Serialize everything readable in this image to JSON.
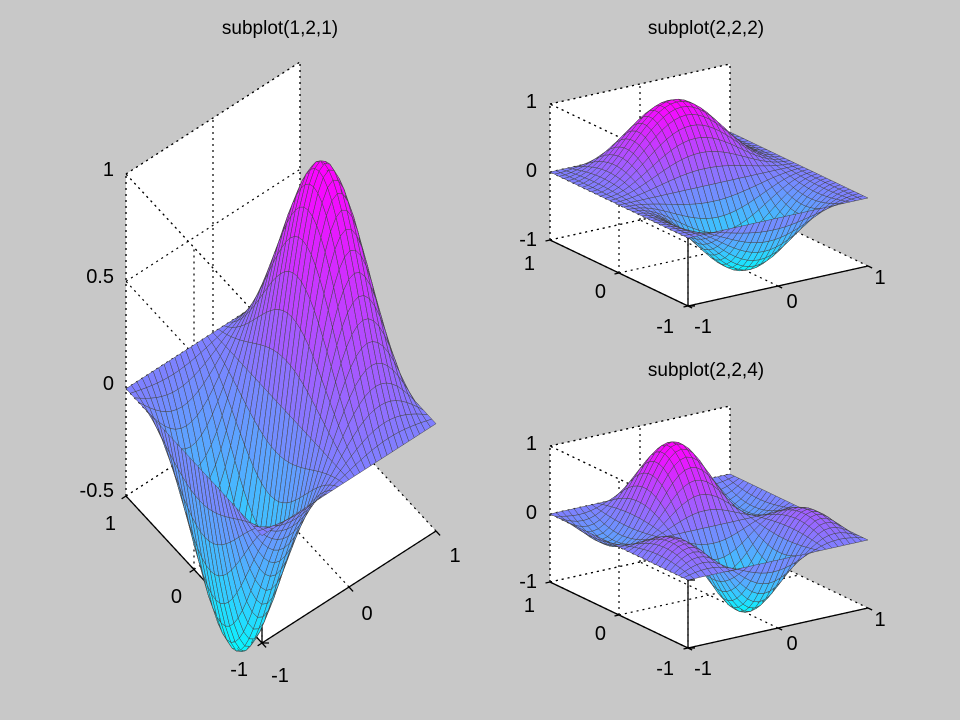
{
  "figure": {
    "background": "#c8c8c8",
    "axes_background": "#ffffff"
  },
  "chart_data": [
    {
      "type": "surface",
      "title": "subplot(1,2,1)",
      "xlabel": "",
      "ylabel": "",
      "zlabel": "",
      "xlim": [
        -1,
        1
      ],
      "ylim": [
        -1,
        1
      ],
      "zlim": [
        -0.5,
        1
      ],
      "x_ticks": [
        "-1",
        "0",
        "1"
      ],
      "y_ticks": [
        "-1",
        "0",
        "1"
      ],
      "z_ticks": [
        "-0.5",
        "0",
        "0.5",
        "1"
      ],
      "grid": true,
      "colormap": [
        "#00ffff",
        "#ff00ff"
      ],
      "surface": "z = sin(pi*x) * exp(-y^2) * cos(pi*y/2)"
    },
    {
      "type": "surface",
      "title": "subplot(2,2,2)",
      "xlabel": "",
      "ylabel": "",
      "zlabel": "",
      "xlim": [
        -1,
        1
      ],
      "ylim": [
        -1,
        1
      ],
      "zlim": [
        -1,
        1
      ],
      "x_ticks": [
        "-1",
        "0",
        "1"
      ],
      "y_ticks": [
        "-1",
        "0",
        "1"
      ],
      "z_ticks": [
        "-1",
        "0",
        "1"
      ],
      "grid": true,
      "colormap": [
        "#00ffff",
        "#ff00ff"
      ],
      "surface": "z = sin(pi*y) * cos(pi*x/2)^2"
    },
    {
      "type": "surface",
      "title": "subplot(2,2,4)",
      "xlabel": "",
      "ylabel": "",
      "zlabel": "",
      "xlim": [
        -1,
        1
      ],
      "ylim": [
        -1,
        1
      ],
      "zlim": [
        -1,
        1
      ],
      "x_ticks": [
        "-1",
        "0",
        "1"
      ],
      "y_ticks": [
        "-1",
        "0",
        "1"
      ],
      "z_ticks": [
        "-1",
        "0",
        "1"
      ],
      "grid": true,
      "colormap": [
        "#00ffff",
        "#ff00ff"
      ],
      "surface": "z = sin(pi*y) * cos(pi*x) * cos(pi*x/2)"
    }
  ]
}
